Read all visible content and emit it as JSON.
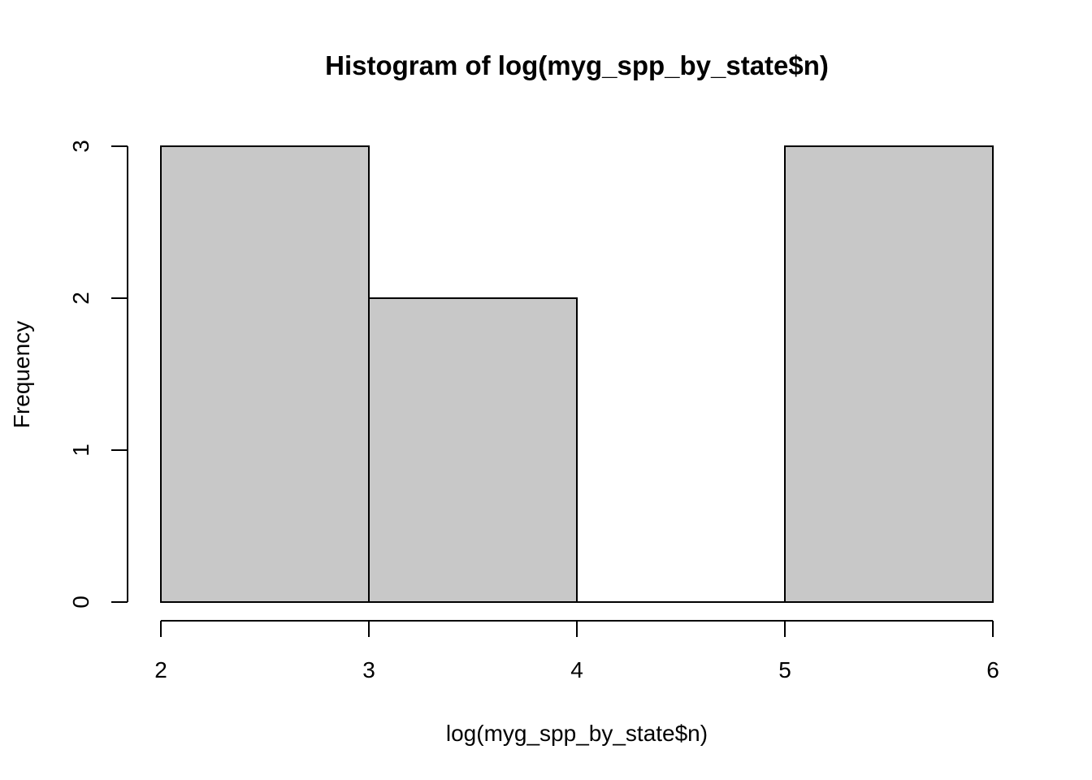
{
  "chart_data": {
    "type": "bar",
    "title": "Histogram of log(myg_spp_by_state$n)",
    "xlabel": "log(myg_spp_by_state$n)",
    "ylabel": "Frequency",
    "bins": [
      {
        "start": 2,
        "end": 3,
        "count": 3
      },
      {
        "start": 3,
        "end": 4,
        "count": 2
      },
      {
        "start": 4,
        "end": 5,
        "count": 0
      },
      {
        "start": 5,
        "end": 6,
        "count": 3
      }
    ],
    "xlim": [
      2,
      6
    ],
    "ylim": [
      0,
      3
    ],
    "x_ticks": [
      2,
      3,
      4,
      5,
      6
    ],
    "y_ticks": [
      0,
      1,
      2,
      3
    ],
    "grid": false,
    "colors": {
      "bar_fill": "#c8c8c8",
      "bar_stroke": "#000000"
    }
  }
}
